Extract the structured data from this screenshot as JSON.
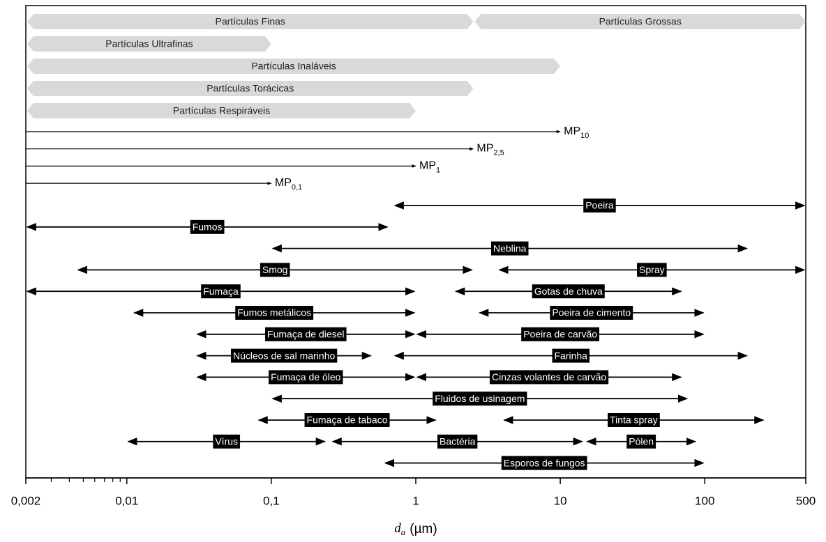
{
  "chart_data": {
    "type": "range",
    "xscale": "log",
    "xlim": [
      0.002,
      500
    ],
    "xticks": [
      {
        "value": 0.002,
        "label": "0,002"
      },
      {
        "value": 0.01,
        "label": "0,01"
      },
      {
        "value": 0.1,
        "label": "0,1"
      },
      1,
      10,
      100,
      500
    ],
    "minor_xticks": [
      0.003,
      0.004,
      0.005,
      0.006,
      0.007,
      0.008,
      0.009
    ],
    "xlabel": {
      "symbol": "d",
      "sub": "a",
      "unit": "(µm)"
    },
    "band_color": "#d9d9d9",
    "bands": [
      [
        {
          "name": "Partículas Finas",
          "start": 0.002,
          "end": 2.5
        },
        {
          "name": "Partículas Grossas",
          "start": 2.5,
          "end": 500
        }
      ],
      [
        {
          "name": "Partículas Ultrafinas",
          "start": 0.002,
          "end": 0.1
        }
      ],
      [
        {
          "name": "Partículas Inaláveis",
          "start": 0.002,
          "end": 10
        }
      ],
      [
        {
          "name": "Partículas Torácicas",
          "start": 0.002,
          "end": 2.5
        }
      ],
      [
        {
          "name": "Partículas Respiráveis",
          "start": 0.002,
          "end": 1
        }
      ]
    ],
    "limits": [
      {
        "name": "MP",
        "sub": "10",
        "start": 0.002,
        "end": 10
      },
      {
        "name": "MP",
        "sub": "2,5",
        "start": 0.002,
        "end": 2.5
      },
      {
        "name": "MP",
        "sub": "1",
        "start": 0.002,
        "end": 1
      },
      {
        "name": "MP",
        "sub": "0,1",
        "start": 0.002,
        "end": 0.1
      }
    ],
    "ranges": [
      [
        {
          "name": "Poeira",
          "start": 0.7,
          "end": 500
        }
      ],
      [
        {
          "name": "Fumos",
          "start": 0.002,
          "end": 0.65
        }
      ],
      [
        {
          "name": "Neblina",
          "start": 0.1,
          "end": 200
        }
      ],
      [
        {
          "name": "Smog",
          "start": 0.0045,
          "end": 2.5
        },
        {
          "name": "Spray",
          "start": 3.7,
          "end": 500
        }
      ],
      [
        {
          "name": "Fumaça",
          "start": 0.002,
          "end": 1
        },
        {
          "name": "Gotas de chuva",
          "start": 1.85,
          "end": 70
        }
      ],
      [
        {
          "name": "Fumos metálicos",
          "start": 0.011,
          "end": 1
        },
        {
          "name": "Poeira de cimento",
          "start": 2.7,
          "end": 100
        }
      ],
      [
        {
          "name": "Fumaça de diesel",
          "start": 0.03,
          "end": 1
        },
        {
          "name": "Poeira de carvão",
          "start": 1,
          "end": 100
        }
      ],
      [
        {
          "name": "Núcleos de sal marinho",
          "start": 0.03,
          "end": 0.5
        },
        {
          "name": "Farinha",
          "start": 0.7,
          "end": 200
        }
      ],
      [
        {
          "name": "Fumaça de óleo",
          "start": 0.03,
          "end": 1
        },
        {
          "name": "Cinzas volantes de carvão",
          "start": 1,
          "end": 70
        }
      ],
      [
        {
          "name": "Fluidos de usinagem",
          "start": 0.1,
          "end": 77
        }
      ],
      [
        {
          "name": "Fumaça de tabaco",
          "start": 0.08,
          "end": 1.4
        },
        {
          "name": "Tinta spray",
          "start": 4,
          "end": 260
        }
      ],
      [
        {
          "name": "Vírus",
          "start": 0.01,
          "end": 0.24
        },
        {
          "name": "Bactéria",
          "start": 0.26,
          "end": 14.5
        },
        {
          "name": "Pólen",
          "start": 15,
          "end": 88
        }
      ],
      [
        {
          "name": "Esporos de fungos",
          "start": 0.6,
          "end": 100
        }
      ]
    ]
  }
}
